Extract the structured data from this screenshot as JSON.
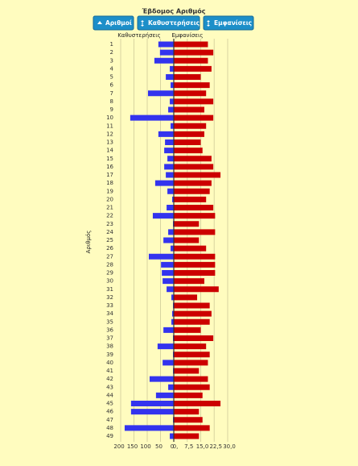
{
  "controls": [
    "Αριθμοί",
    "Καθυστερήσεις",
    "Εμφανίσεις"
  ],
  "chart_data": {
    "type": "diverging_bar",
    "title": "Έβδομος Αριθμός",
    "y_label": "Αριθμός",
    "categories": [
      "1",
      "2",
      "3",
      "4",
      "5",
      "6",
      "7",
      "8",
      "9",
      "10",
      "11",
      "12",
      "13",
      "14",
      "15",
      "16",
      "17",
      "18",
      "19",
      "20",
      "21",
      "22",
      "23",
      "24",
      "25",
      "26",
      "27",
      "28",
      "29",
      "30",
      "31",
      "32",
      "33",
      "34",
      "35",
      "36",
      "37",
      "38",
      "39",
      "40",
      "41",
      "42",
      "43",
      "44",
      "45",
      "46",
      "47",
      "48",
      "49"
    ],
    "series": [
      {
        "name": "Καθυστερήσεις",
        "color": "#3333ee",
        "side": "left",
        "xlim": [
          200,
          0
        ],
        "xticks": [
          200,
          150,
          100,
          50,
          0
        ],
        "values": [
          58,
          52,
          73,
          15,
          30,
          12,
          97,
          15,
          21,
          164,
          12,
          58,
          33,
          36,
          24,
          36,
          30,
          70,
          24,
          6,
          27,
          79,
          3,
          21,
          39,
          12,
          94,
          48,
          45,
          42,
          27,
          9,
          3,
          6,
          9,
          39,
          3,
          61,
          3,
          42,
          3,
          91,
          21,
          67,
          161,
          161,
          3,
          185,
          15
        ]
      },
      {
        "name": "Εμφανίσεις",
        "color": "#cc0000",
        "side": "right",
        "xlim": [
          0,
          30
        ],
        "xticks": [
          {
            "value": 0,
            "label": "0,"
          },
          {
            "value": 7.5,
            "label": "7,5"
          },
          {
            "value": 15,
            "label": "15,0"
          },
          {
            "value": 22.5,
            "label": "22,5"
          },
          {
            "value": 30,
            "label": "30,0"
          }
        ],
        "values": [
          19,
          22,
          19,
          21,
          15,
          20,
          18,
          22,
          17,
          22,
          18,
          17,
          15,
          16,
          21,
          22,
          26,
          21,
          20,
          18,
          22,
          23,
          14,
          23,
          14,
          18,
          23,
          23,
          23,
          17,
          25,
          13,
          20,
          21,
          20,
          15,
          22,
          18,
          20,
          19,
          14,
          19,
          20,
          16,
          26,
          14,
          16,
          20,
          14
        ]
      }
    ],
    "grid": true
  }
}
